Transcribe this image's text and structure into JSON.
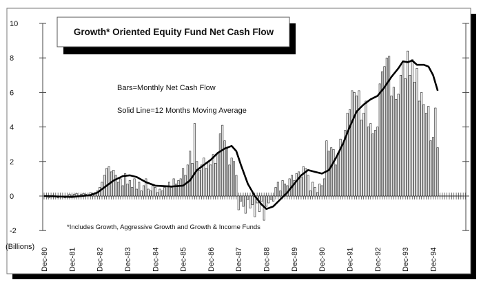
{
  "chart_data": {
    "type": "bar",
    "title": "Growth* Oriented Equity Fund Net Cash Flow",
    "annotations": [
      "Bars=Monthly Net Cash Flow",
      "Solid Line=12 Months Moving Average"
    ],
    "footnote": "*Includes Growth, Aggressive Growth and Growth & Income Funds",
    "ylabel": "(Billions)",
    "ylim": [
      -2,
      10
    ],
    "yticks": [
      "10",
      "8",
      "6",
      "4",
      "2",
      "0",
      "-2"
    ],
    "xticks": [
      "Dec-80",
      "Dec-81",
      "Dec-82",
      "Dec-83",
      "Dec-84",
      "Dec-85",
      "Dec-86",
      "Dec-87",
      "Dec-88",
      "Dec-89",
      "Dec-90",
      "Dec-91",
      "Dec-92",
      "Dec-93",
      "Dec-94"
    ],
    "grid": false,
    "bars": {
      "name": "Monthly Net Cash Flow",
      "start_month": "1981-01",
      "frequency": "monthly",
      "values": [
        0.0,
        -0.1,
        0.0,
        0.05,
        0.0,
        -0.1,
        0.0,
        0.0,
        -0.1,
        0.0,
        0.1,
        0.05,
        0.1,
        0.15,
        0.0,
        0.1,
        0.15,
        0.1,
        0.05,
        0.2,
        0.15,
        0.2,
        0.3,
        0.5,
        0.8,
        1.2,
        1.6,
        1.7,
        1.4,
        1.5,
        1.2,
        0.8,
        1.0,
        0.6,
        1.3,
        0.7,
        0.9,
        0.5,
        1.0,
        0.4,
        0.8,
        0.3,
        0.6,
        1.0,
        0.4,
        0.3,
        0.6,
        0.5,
        0.2,
        0.4,
        0.3,
        0.5,
        0.6,
        0.8,
        0.5,
        1.0,
        0.7,
        0.9,
        1.0,
        1.6,
        1.2,
        1.8,
        2.6,
        1.9,
        4.2,
        2.0,
        1.5,
        1.8,
        2.2,
        1.6,
        2.0,
        1.8,
        2.4,
        1.9,
        2.5,
        3.6,
        4.1,
        3.2,
        2.8,
        1.8,
        2.2,
        2.0,
        1.2,
        -0.8,
        -0.3,
        -0.6,
        -1.0,
        -0.2,
        -0.7,
        -0.5,
        -1.2,
        -0.4,
        -0.9,
        -0.3,
        -1.4,
        -0.6,
        -0.4,
        -0.2,
        -0.3,
        0.5,
        0.8,
        0.3,
        0.9,
        0.7,
        0.6,
        1.0,
        1.2,
        0.9,
        1.3,
        1.4,
        1.1,
        1.7,
        1.6,
        1.2,
        0.3,
        0.8,
        0.5,
        0.2,
        0.7,
        0.6,
        1.0,
        3.2,
        2.6,
        2.8,
        2.7,
        1.8,
        2.5,
        3.3,
        3.0,
        3.8,
        4.8,
        5.0,
        6.1,
        6.0,
        5.8,
        6.1,
        4.4,
        4.8,
        5.5,
        4.0,
        4.2,
        3.6,
        3.8,
        4.0,
        6.5,
        7.2,
        7.5,
        8.0,
        8.1,
        5.8,
        6.3,
        5.6,
        5.9,
        7.0,
        7.8,
        6.8,
        8.4,
        7.0,
        7.9,
        6.6,
        7.4,
        5.5,
        6.0,
        5.3,
        4.8,
        5.2,
        3.2,
        3.4,
        5.1,
        2.8
      ]
    },
    "line": {
      "name": "12 Months Moving Average",
      "points": [
        [
          "1980-12",
          0
        ],
        [
          "1981-12",
          -0.05
        ],
        [
          "1982-08",
          0.05
        ],
        [
          "1982-11",
          0.2
        ],
        [
          "1983-02",
          0.5
        ],
        [
          "1983-06",
          0.9
        ],
        [
          "1983-10",
          1.15
        ],
        [
          "1984-01",
          1.2
        ],
        [
          "1984-04",
          1.1
        ],
        [
          "1984-08",
          0.8
        ],
        [
          "1984-12",
          0.6
        ],
        [
          "1985-07",
          0.55
        ],
        [
          "1985-12",
          0.6
        ],
        [
          "1986-03",
          0.9
        ],
        [
          "1986-06",
          1.5
        ],
        [
          "1986-09",
          1.8
        ],
        [
          "1986-12",
          2.1
        ],
        [
          "1987-03",
          2.5
        ],
        [
          "1987-06",
          2.75
        ],
        [
          "1987-09",
          2.9
        ],
        [
          "1987-11",
          2.6
        ],
        [
          "1988-01",
          1.8
        ],
        [
          "1988-04",
          0.7
        ],
        [
          "1988-07",
          0.0
        ],
        [
          "1988-10",
          -0.5
        ],
        [
          "1988-12",
          -0.75
        ],
        [
          "1989-03",
          -0.6
        ],
        [
          "1989-06",
          -0.2
        ],
        [
          "1989-09",
          0.2
        ],
        [
          "1989-12",
          0.7
        ],
        [
          "1990-03",
          1.2
        ],
        [
          "1990-06",
          1.5
        ],
        [
          "1990-09",
          1.4
        ],
        [
          "1990-12",
          1.3
        ],
        [
          "1991-03",
          1.5
        ],
        [
          "1991-06",
          2.2
        ],
        [
          "1991-09",
          3.0
        ],
        [
          "1991-12",
          4.0
        ],
        [
          "1992-03",
          4.9
        ],
        [
          "1992-06",
          5.3
        ],
        [
          "1992-09",
          5.6
        ],
        [
          "1992-12",
          5.8
        ],
        [
          "1993-03",
          6.3
        ],
        [
          "1993-06",
          6.9
        ],
        [
          "1993-09",
          7.4
        ],
        [
          "1993-11",
          7.8
        ],
        [
          "1994-01",
          7.75
        ],
        [
          "1994-03",
          7.85
        ],
        [
          "1994-05",
          7.6
        ],
        [
          "1994-08",
          7.6
        ],
        [
          "1994-10",
          7.5
        ],
        [
          "1994-12",
          7.0
        ],
        [
          "1995-02",
          6.1
        ]
      ]
    },
    "colors": {
      "bar_stroke": "#222222",
      "bar_fill": "#eeeeee",
      "line": "#000000"
    }
  }
}
